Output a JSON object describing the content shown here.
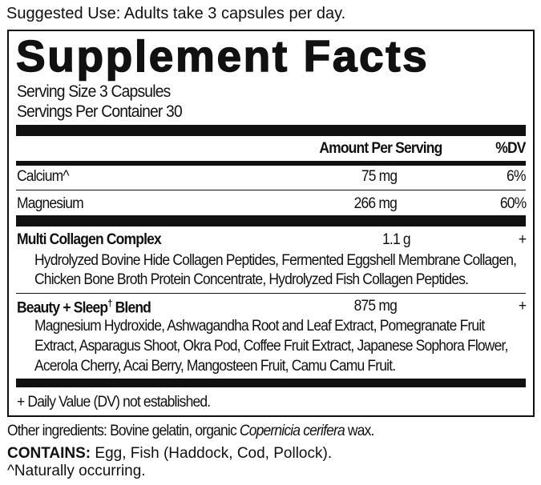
{
  "suggested_use": "Suggested Use: Adults take 3 capsules per day.",
  "title": "Supplement Facts",
  "serving_size": "Serving Size 3 Capsules",
  "servings_per_container": "Servings Per Container 30",
  "header": {
    "amount": "Amount Per Serving",
    "dv": "%DV"
  },
  "nutrients": [
    {
      "name": "Calcium^",
      "amount": "75 mg",
      "dv": "6%"
    },
    {
      "name": "Magnesium",
      "amount": "266 mg",
      "dv": "60%"
    }
  ],
  "blends": [
    {
      "name": "Multi Collagen Complex",
      "amount": "1.1 g",
      "dv": "+",
      "lines": [
        "Hydrolyzed Bovine Hide Collagen Peptides, Fermented Eggshell Membrane Collagen,",
        "Chicken Bone Broth Protein Concentrate, Hydrolyzed Fish Collagen Peptides."
      ]
    },
    {
      "name": "Beauty + Sleep",
      "name_mark": "†",
      "name_suffix": "Blend",
      "amount": "875 mg",
      "dv": "+",
      "lines": [
        "Magnesium Hydroxide, Ashwagandha Root and Leaf Extract, Pomegranate Fruit",
        "Extract, Asparagus Shoot, Okra Pod, Coffee Fruit Extract, Japanese Sophora Flower,",
        "Acerola Cherry, Acai Berry, Mangosteen Fruit, Camu Camu Fruit."
      ]
    }
  ],
  "footnote": "+ Daily Value (DV) not established.",
  "other_ingredients": {
    "prefix": "Other ingredients: Bovine gelatin, organic ",
    "italic": "Copernicia cerifera",
    "suffix": " wax."
  },
  "contains": {
    "label": "CONTAINS:",
    "text": " Egg, Fish (Haddock, Cod, Pollock)."
  },
  "naturally": "^Naturally occurring."
}
